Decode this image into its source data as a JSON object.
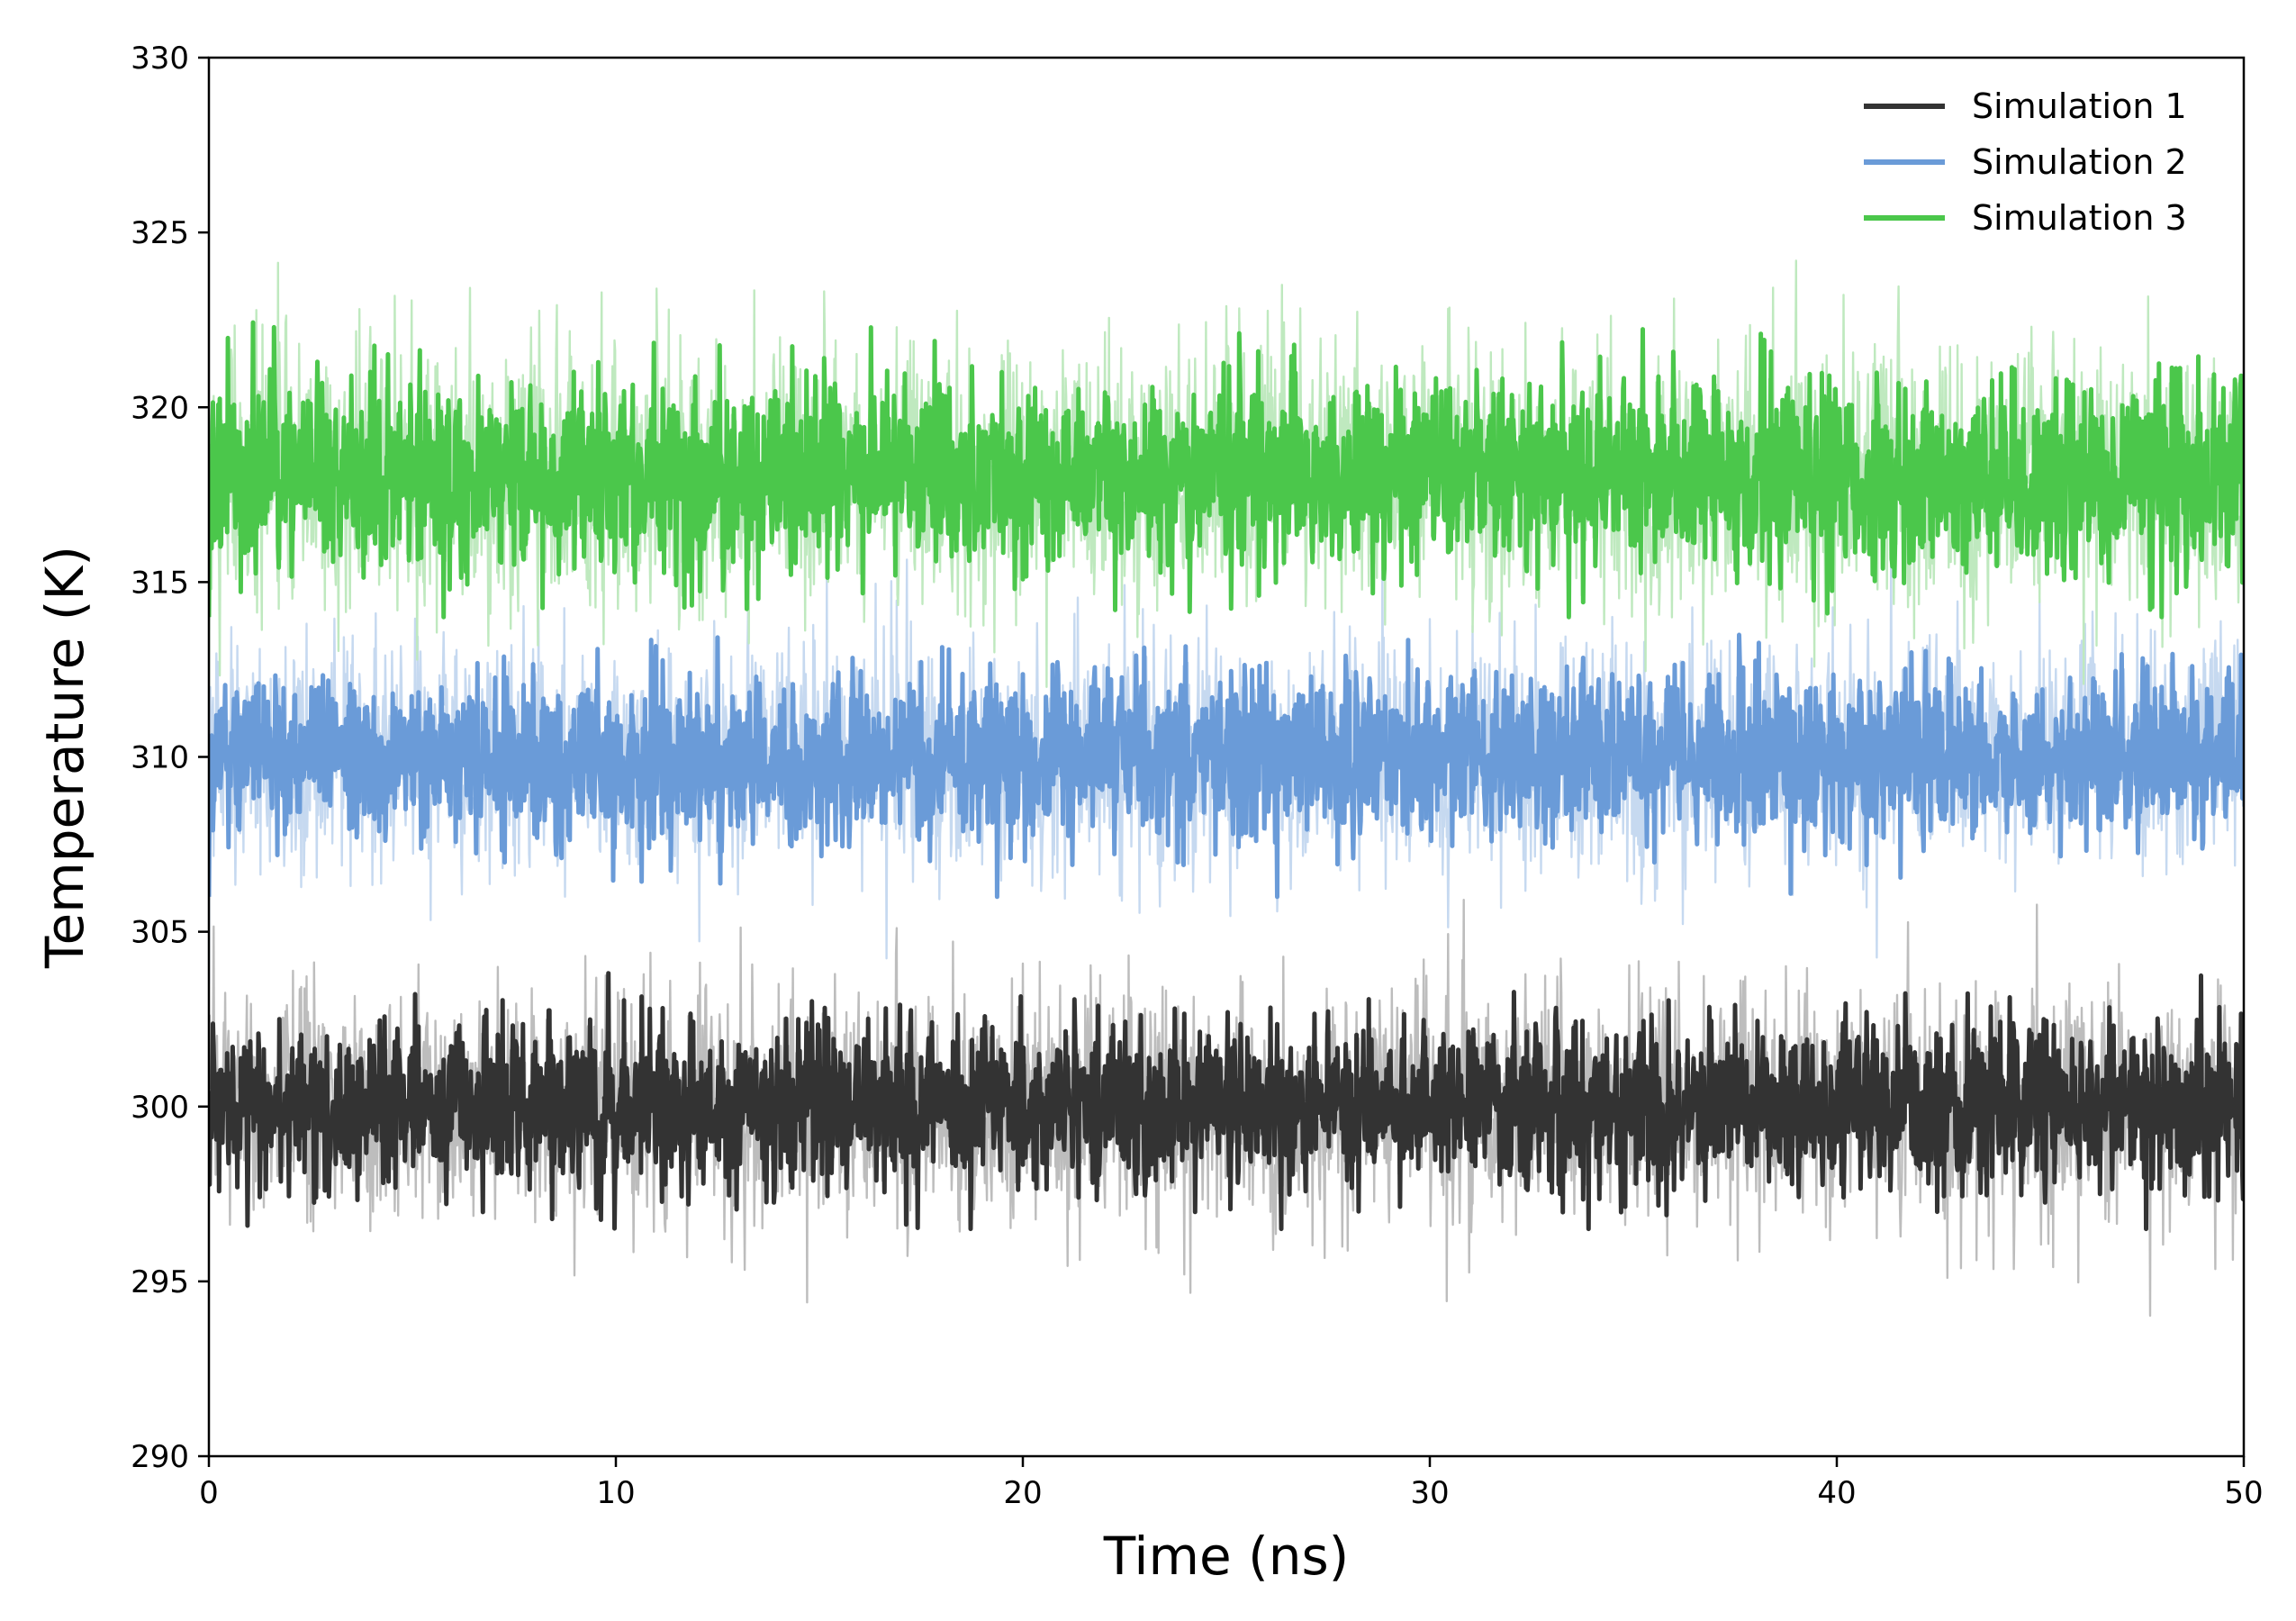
{
  "chart_data": {
    "type": "line",
    "title": "",
    "xlabel": "Time (ns)",
    "ylabel": "Temperature (K)",
    "xlim": [
      0,
      50
    ],
    "ylim": [
      290,
      330
    ],
    "xticks": [
      0,
      10,
      20,
      30,
      40,
      50
    ],
    "yticks": [
      290,
      295,
      300,
      305,
      310,
      315,
      320,
      325,
      330
    ],
    "grid": false,
    "legend": {
      "position": "top-right"
    },
    "series": [
      {
        "name": "Simulation 1",
        "color": "#333333",
        "raw_color": "#bdbdbd",
        "mean": 300,
        "typical_range": [
          296.5,
          304
        ],
        "raw_range": [
          293.4,
          306
        ],
        "x": [
          0,
          5,
          10,
          15,
          20,
          25,
          30,
          35,
          40,
          45,
          50
        ],
        "values": [
          300.1,
          299.8,
          300.2,
          299.9,
          300.0,
          300.1,
          299.9,
          300.2,
          299.8,
          300.0,
          300.1
        ]
      },
      {
        "name": "Simulation 2",
        "color": "#6a9bd8",
        "raw_color": "#c6d9f0",
        "mean": 310,
        "typical_range": [
          306,
          313.5
        ],
        "raw_range": [
          303.5,
          316
        ],
        "x": [
          0,
          5,
          10,
          15,
          20,
          25,
          30,
          35,
          40,
          45,
          50
        ],
        "values": [
          310.0,
          309.9,
          310.1,
          310.0,
          309.8,
          310.1,
          310.0,
          309.9,
          310.1,
          310.0,
          309.9
        ]
      },
      {
        "name": "Simulation 3",
        "color": "#4bc74b",
        "raw_color": "#bfe9bf",
        "mean": 318,
        "typical_range": [
          314,
          322.8
        ],
        "raw_range": [
          312,
          326
        ],
        "x": [
          0,
          5,
          10,
          15,
          20,
          25,
          30,
          35,
          40,
          45,
          50
        ],
        "values": [
          318.0,
          318.1,
          317.9,
          318.0,
          318.2,
          317.9,
          318.0,
          318.1,
          317.9,
          318.0,
          318.1
        ]
      }
    ]
  }
}
